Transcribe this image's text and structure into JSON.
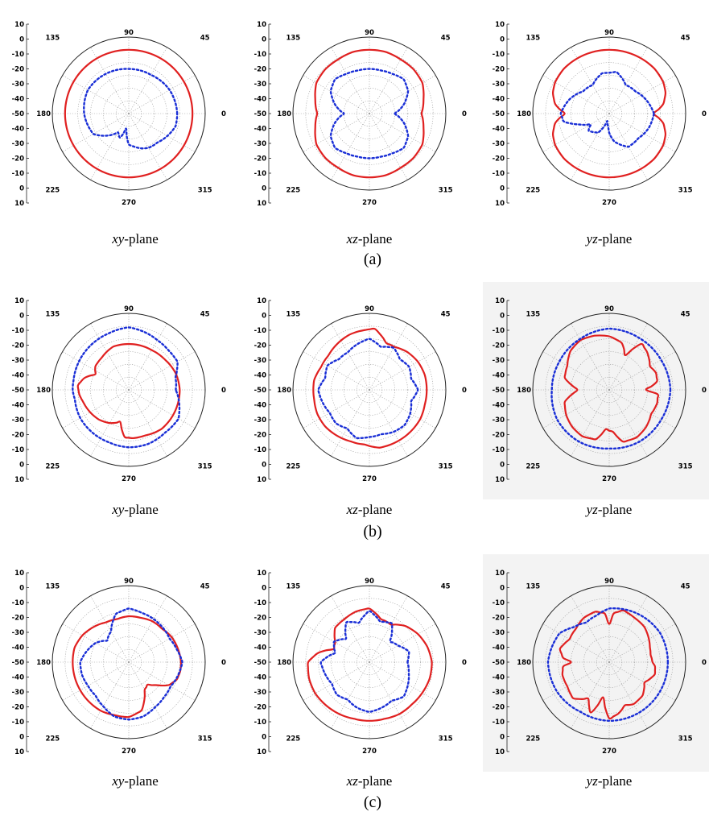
{
  "colors": {
    "solid": "#e02020",
    "dotted": "#1a2fd6",
    "panel_bg_gray": "#f3f3f3"
  },
  "radial_ticks": [
    "10",
    "0",
    "-10",
    "-20",
    "-30",
    "-40",
    "-50",
    "-40",
    "-30",
    "-20",
    "-10",
    "0",
    "10"
  ],
  "angle_labels": [
    "90",
    "45",
    "0",
    "315",
    "270",
    "225",
    "180",
    "135"
  ],
  "rows": [
    {
      "label": "(a)",
      "captions": [
        {
          "italic": "xy",
          "rest": "-plane"
        },
        {
          "italic": "xz",
          "rest": "-plane"
        },
        {
          "italic": "yz",
          "rest": "-plane"
        }
      ]
    },
    {
      "label": "(b)",
      "captions": [
        {
          "italic": "xy",
          "rest": "-plane"
        },
        {
          "italic": "xz",
          "rest": "-plane"
        },
        {
          "italic": "yz",
          "rest": "-plane"
        }
      ]
    },
    {
      "label": "(c)",
      "captions": [
        {
          "italic": "xy",
          "rest": "-plane"
        },
        {
          "italic": "xz",
          "rest": "-plane"
        },
        {
          "italic": "yz",
          "rest": "-plane"
        }
      ]
    }
  ],
  "chart_data": [
    {
      "type": "polar",
      "row": "(a)",
      "plane": "xy-plane",
      "rlim": [
        -50,
        10
      ],
      "grid": true,
      "gray_bg": false,
      "series": [
        {
          "style": "solid",
          "angles": [
            0,
            45,
            90,
            135,
            180,
            225,
            270,
            315
          ],
          "values": [
            0,
            0,
            0,
            0,
            0,
            0,
            0,
            0
          ]
        },
        {
          "style": "dotted",
          "angles": [
            0,
            30,
            60,
            90,
            120,
            150,
            180,
            210,
            240,
            250,
            260,
            270,
            290,
            300,
            315,
            330,
            345
          ],
          "values": [
            -12,
            -13,
            -15,
            -15,
            -14,
            -13,
            -15,
            -18,
            -33,
            -30,
            -38,
            -26,
            -21,
            -19,
            -18,
            -15,
            -12
          ]
        }
      ]
    },
    {
      "type": "polar",
      "row": "(a)",
      "plane": "xz-plane",
      "rlim": [
        -50,
        10
      ],
      "grid": true,
      "gray_bg": false,
      "series": [
        {
          "style": "solid",
          "angles": [
            0,
            15,
            30,
            45,
            60,
            75,
            90,
            105,
            120,
            135,
            150,
            165,
            180,
            195,
            210,
            225,
            240,
            255,
            270,
            285,
            300,
            315,
            330,
            345
          ],
          "values": [
            -9,
            -6,
            -2,
            -1,
            -1,
            0,
            0,
            0,
            -1,
            -1,
            -2,
            -6,
            -9,
            -6,
            -2,
            -1,
            -1,
            0,
            0,
            0,
            -1,
            -1,
            -2,
            -6
          ]
        },
        {
          "style": "dotted",
          "angles": [
            0,
            15,
            30,
            45,
            60,
            75,
            90,
            105,
            120,
            135,
            150,
            165,
            180,
            195,
            210,
            225,
            240,
            255,
            270,
            285,
            300,
            315,
            330,
            345
          ],
          "values": [
            -30,
            -22,
            -15,
            -12,
            -14,
            -15,
            -15,
            -15,
            -14,
            -12,
            -15,
            -22,
            -30,
            -22,
            -15,
            -12,
            -14,
            -15,
            -15,
            -15,
            -14,
            -12,
            -15,
            -22
          ]
        }
      ]
    },
    {
      "type": "polar",
      "row": "(a)",
      "plane": "yz-plane",
      "rlim": [
        -50,
        10
      ],
      "grid": true,
      "gray_bg": false,
      "series": [
        {
          "style": "solid",
          "angles": [
            0,
            10,
            20,
            30,
            45,
            60,
            90,
            120,
            135,
            150,
            160,
            170,
            180,
            190,
            200,
            210,
            225,
            240,
            270,
            300,
            315,
            330,
            340,
            350
          ],
          "values": [
            -15,
            -7,
            -3,
            -1,
            0,
            0,
            0,
            0,
            0,
            -1,
            -3,
            -7,
            -15,
            -7,
            -3,
            -1,
            0,
            0,
            0,
            0,
            0,
            -1,
            -3,
            -7
          ]
        },
        {
          "style": "dotted",
          "angles": [
            0,
            20,
            40,
            60,
            80,
            90,
            100,
            120,
            140,
            160,
            180,
            190,
            200,
            210,
            220,
            240,
            255,
            265,
            270,
            280,
            300,
            320,
            340
          ],
          "values": [
            -15,
            -19,
            -23,
            -24,
            -17,
            -18,
            -18,
            -24,
            -23,
            -17,
            -12,
            -14,
            -25,
            -33,
            -29,
            -33,
            -44,
            -40,
            -35,
            -28,
            -20,
            -20,
            -17
          ]
        }
      ]
    },
    {
      "type": "polar",
      "row": "(b)",
      "plane": "xy-plane",
      "rlim": [
        -50,
        10
      ],
      "grid": true,
      "gray_bg": false,
      "series": [
        {
          "style": "solid",
          "angles": [
            0,
            20,
            40,
            60,
            80,
            90,
            110,
            130,
            145,
            155,
            165,
            175,
            185,
            195,
            210,
            225,
            240,
            255,
            265,
            275,
            290,
            310,
            330,
            350
          ],
          "values": [
            -10,
            -11,
            -13,
            -14,
            -14,
            -14,
            -14,
            -17,
            -18,
            -21,
            -14,
            -10,
            -11,
            -13,
            -15,
            -17,
            -20,
            -24,
            -13,
            -12,
            -12,
            -10,
            -10,
            -10
          ]
        },
        {
          "style": "dotted",
          "angles": [
            0,
            15,
            30,
            45,
            60,
            75,
            90,
            110,
            130,
            150,
            170,
            180,
            190,
            210,
            230,
            250,
            270,
            290,
            310,
            330,
            345
          ],
          "values": [
            -13,
            -12,
            -6,
            -6,
            -5,
            -3,
            -1,
            -3,
            -4,
            -5,
            -6,
            -6,
            -7,
            -6,
            -6,
            -6,
            -5,
            -5,
            -6,
            -5,
            -9
          ]
        }
      ]
    },
    {
      "type": "polar",
      "row": "(b)",
      "plane": "xz-plane",
      "rlim": [
        -50,
        10
      ],
      "grid": true,
      "gray_bg": false,
      "series": [
        {
          "style": "solid",
          "angles": [
            0,
            15,
            30,
            45,
            60,
            70,
            85,
            95,
            110,
            125,
            140,
            155,
            170,
            180,
            190,
            205,
            220,
            235,
            250,
            265,
            280,
            295,
            310,
            330,
            345
          ],
          "values": [
            -5,
            -5,
            -6,
            -8,
            -11,
            -11,
            -2,
            -3,
            -4,
            -6,
            -8,
            -8,
            -6,
            -6,
            -6,
            -5,
            -5,
            -6,
            -7,
            -7,
            -4,
            -4,
            -4,
            -4,
            -5
          ]
        },
        {
          "style": "dotted",
          "angles": [
            0,
            15,
            30,
            45,
            60,
            75,
            90,
            105,
            120,
            135,
            150,
            165,
            180,
            195,
            210,
            225,
            240,
            255,
            270,
            285,
            300,
            315,
            330,
            345
          ],
          "values": [
            -12,
            -16,
            -14,
            -16,
            -12,
            -15,
            -10,
            -13,
            -16,
            -16,
            -12,
            -14,
            -10,
            -12,
            -14,
            -13,
            -15,
            -11,
            -13,
            -14,
            -12,
            -11,
            -13,
            -16
          ]
        }
      ]
    },
    {
      "type": "polar",
      "row": "(b)",
      "plane": "yz-plane",
      "rlim": [
        -50,
        10
      ],
      "grid": true,
      "gray_bg": true,
      "series": [
        {
          "style": "solid",
          "angles": [
            0,
            10,
            20,
            30,
            45,
            55,
            65,
            75,
            90,
            105,
            120,
            135,
            150,
            165,
            175,
            180,
            185,
            195,
            210,
            225,
            240,
            255,
            265,
            275,
            285,
            300,
            315,
            330,
            345,
            355
          ],
          "values": [
            -21,
            -12,
            -11,
            -13,
            -8,
            -6,
            -20,
            -12,
            -8,
            -6,
            -5,
            -7,
            -12,
            -14,
            -22,
            -25,
            -22,
            -14,
            -11,
            -9,
            -8,
            -10,
            -19,
            -17,
            -8,
            -7,
            -9,
            -12,
            -11,
            -12
          ]
        },
        {
          "style": "dotted",
          "angles": [
            0,
            30,
            60,
            90,
            120,
            150,
            180,
            210,
            240,
            270,
            300,
            330
          ],
          "values": [
            -2,
            -3,
            -3,
            -2,
            -4,
            -5,
            -5,
            -3,
            -3,
            -4,
            -3,
            -3
          ]
        }
      ]
    },
    {
      "type": "polar",
      "row": "(c)",
      "plane": "xy-plane",
      "rlim": [
        -50,
        10
      ],
      "grid": true,
      "gray_bg": false,
      "series": [
        {
          "style": "solid",
          "angles": [
            0,
            15,
            30,
            45,
            60,
            75,
            90,
            105,
            120,
            135,
            150,
            165,
            180,
            195,
            210,
            225,
            240,
            255,
            270,
            285,
            300,
            310,
            320,
            330,
            340,
            350
          ],
          "values": [
            -9,
            -10,
            -11,
            -13,
            -13,
            -14,
            -14,
            -15,
            -14,
            -11,
            -8,
            -6,
            -6,
            -6,
            -6,
            -6,
            -6,
            -7,
            -7,
            -11,
            -25,
            -27,
            -22,
            -14,
            -10,
            -9
          ]
        },
        {
          "style": "dotted",
          "angles": [
            0,
            15,
            30,
            45,
            60,
            75,
            90,
            105,
            120,
            135,
            150,
            165,
            180,
            195,
            210,
            225,
            240,
            255,
            270,
            285,
            300,
            315,
            330,
            345
          ],
          "values": [
            -8,
            -11,
            -13,
            -12,
            -11,
            -10,
            -8,
            -11,
            -22,
            -26,
            -20,
            -16,
            -12,
            -12,
            -13,
            -13,
            -10,
            -6,
            -5,
            -6,
            -9,
            -11,
            -12,
            -10
          ]
        }
      ]
    },
    {
      "type": "polar",
      "row": "(c)",
      "plane": "xz-plane",
      "rlim": [
        -50,
        10
      ],
      "grid": true,
      "gray_bg": false,
      "series": [
        {
          "style": "solid",
          "angles": [
            0,
            15,
            30,
            45,
            60,
            75,
            90,
            105,
            120,
            135,
            150,
            160,
            170,
            180,
            195,
            210,
            225,
            240,
            255,
            270,
            285,
            300,
            315,
            330,
            345
          ],
          "values": [
            -1,
            -3,
            -6,
            -10,
            -16,
            -15,
            -8,
            -9,
            -11,
            -12,
            -19,
            -20,
            -9,
            -2,
            -1,
            -1,
            -2,
            -3,
            -4,
            -4,
            -4,
            -3,
            -3,
            -2,
            -1
          ]
        },
        {
          "style": "dotted",
          "angles": [
            0,
            15,
            30,
            45,
            60,
            75,
            90,
            105,
            120,
            135,
            150,
            165,
            180,
            195,
            210,
            225,
            240,
            255,
            270,
            285,
            300,
            315,
            330,
            345
          ],
          "values": [
            -20,
            -18,
            -24,
            -27,
            -15,
            -17,
            -10,
            -18,
            -14,
            -24,
            -18,
            -22,
            -12,
            -14,
            -16,
            -14,
            -16,
            -13,
            -11,
            -13,
            -15,
            -12,
            -15,
            -18
          ]
        }
      ]
    },
    {
      "type": "polar",
      "row": "(c)",
      "plane": "yz-plane",
      "rlim": [
        -50,
        10
      ],
      "grid": true,
      "gray_bg": true,
      "series": [
        {
          "style": "solid",
          "angles": [
            0,
            10,
            20,
            30,
            45,
            60,
            75,
            85,
            90,
            95,
            105,
            120,
            135,
            150,
            165,
            175,
            180,
            185,
            195,
            210,
            225,
            240,
            250,
            260,
            270,
            280,
            290,
            300,
            315,
            330,
            345,
            355
          ],
          "values": [
            -16,
            -17,
            -16,
            -14,
            -11,
            -10,
            -8,
            -12,
            -20,
            -12,
            -9,
            -10,
            -13,
            -14,
            -10,
            -14,
            -20,
            -14,
            -12,
            -12,
            -10,
            -17,
            -8,
            -22,
            -6,
            -9,
            -14,
            -12,
            -13,
            -18,
            -13,
            -14
          ]
        },
        {
          "style": "dotted",
          "angles": [
            0,
            30,
            60,
            90,
            105,
            120,
            135,
            150,
            180,
            210,
            240,
            270,
            300,
            330
          ],
          "values": [
            -4,
            -4,
            -6,
            -8,
            -12,
            -14,
            -11,
            -5,
            -2,
            -3,
            -5,
            -4,
            -4,
            -4
          ]
        }
      ]
    }
  ]
}
